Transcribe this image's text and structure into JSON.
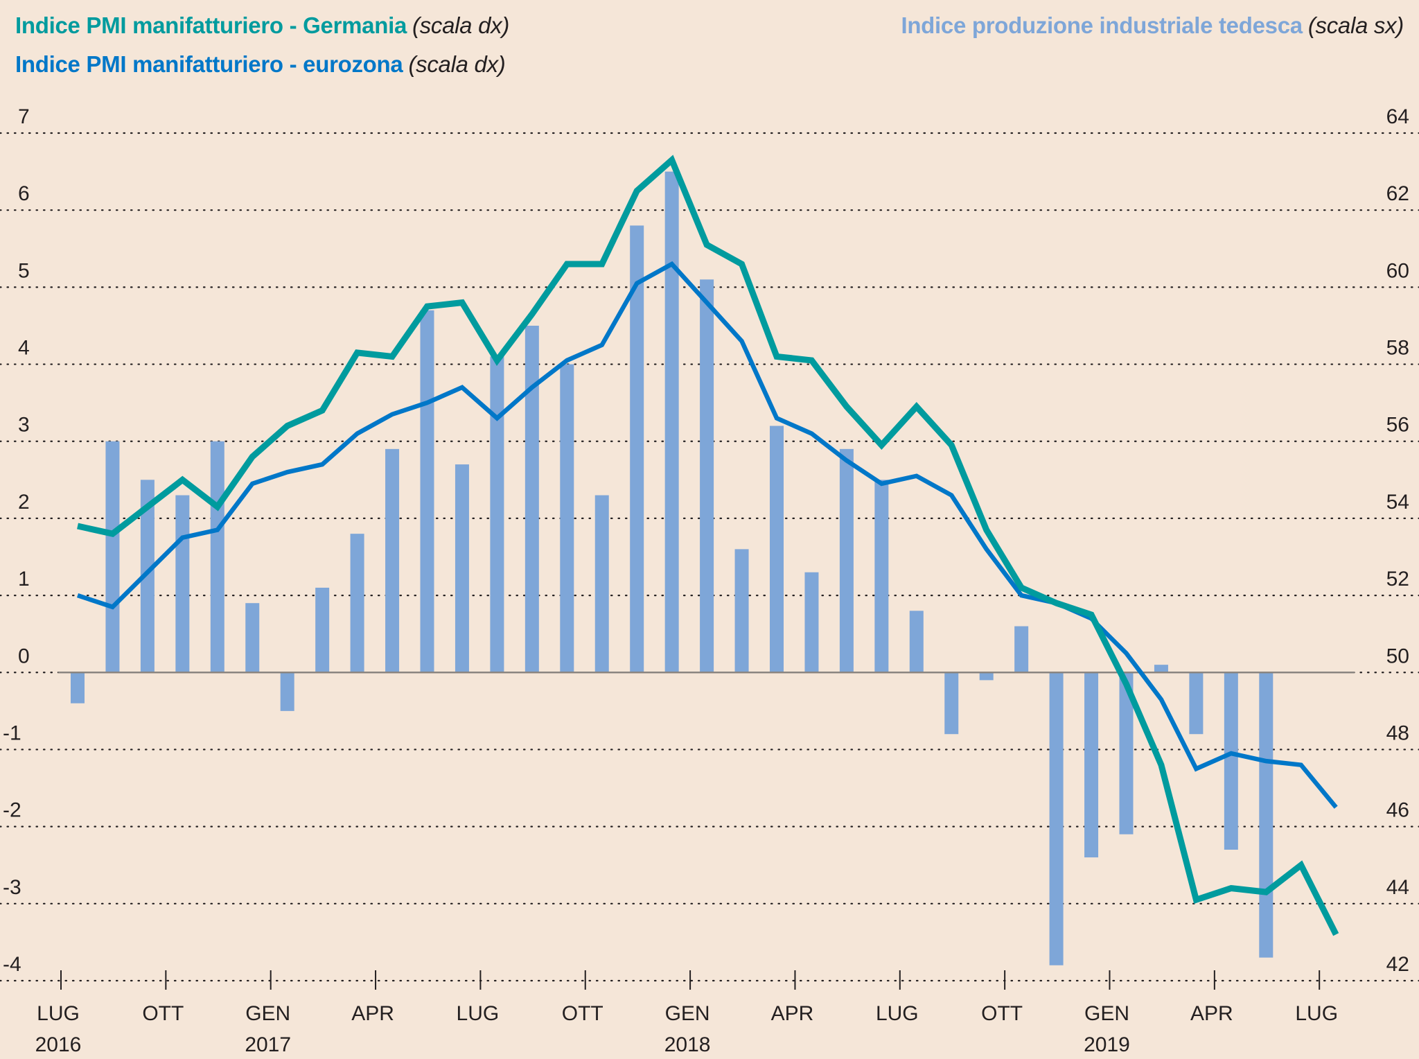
{
  "legend": {
    "germany": {
      "name": "Indice PMI manifatturiero - Germania",
      "scale": "(scala dx)",
      "color": "#009b9e"
    },
    "eurozone": {
      "name": "Indice PMI manifatturiero - eurozona",
      "scale": "(scala dx)",
      "color": "#0077c8"
    },
    "industrial": {
      "name": "Indice produzione industriale tedesca",
      "scale": "(scala sx)",
      "color": "#7ea6d8"
    }
  },
  "chart_data": {
    "type": "bar+line",
    "title": "",
    "x": [
      "2016-07",
      "2016-08",
      "2016-09",
      "2016-10",
      "2016-11",
      "2016-12",
      "2017-01",
      "2017-02",
      "2017-03",
      "2017-04",
      "2017-05",
      "2017-06",
      "2017-07",
      "2017-08",
      "2017-09",
      "2017-10",
      "2017-11",
      "2017-12",
      "2018-01",
      "2018-02",
      "2018-03",
      "2018-04",
      "2018-05",
      "2018-06",
      "2018-07",
      "2018-08",
      "2018-09",
      "2018-10",
      "2018-11",
      "2018-12",
      "2019-01",
      "2019-02",
      "2019-03",
      "2019-04",
      "2019-05",
      "2019-06",
      "2019-07"
    ],
    "x_ticks": [
      {
        "month": "LUG",
        "year": "2016",
        "index": 0
      },
      {
        "month": "OTT",
        "year": "",
        "index": 3
      },
      {
        "month": "GEN",
        "year": "2017",
        "index": 6
      },
      {
        "month": "APR",
        "year": "",
        "index": 9
      },
      {
        "month": "LUG",
        "year": "",
        "index": 12
      },
      {
        "month": "OTT",
        "year": "",
        "index": 15
      },
      {
        "month": "GEN",
        "year": "2018",
        "index": 18
      },
      {
        "month": "APR",
        "year": "",
        "index": 21
      },
      {
        "month": "LUG",
        "year": "",
        "index": 24
      },
      {
        "month": "OTT",
        "year": "",
        "index": 27
      },
      {
        "month": "GEN",
        "year": "2019",
        "index": 30
      },
      {
        "month": "APR",
        "year": "",
        "index": 33
      },
      {
        "month": "LUG",
        "year": "",
        "index": 36
      }
    ],
    "left_axis": {
      "label": "scala sx",
      "ylim": [
        -4,
        7
      ],
      "ticks": [
        "7",
        "6",
        "5",
        "4",
        "3",
        "2",
        "1",
        "0",
        "-1",
        "-2",
        "-3",
        "-4"
      ]
    },
    "right_axis": {
      "label": "scala dx",
      "ylim": [
        42,
        64
      ],
      "ticks": [
        "64",
        "62",
        "60",
        "58",
        "56",
        "54",
        "52",
        "50",
        "48",
        "46",
        "44",
        "42"
      ]
    },
    "grid": true,
    "series": [
      {
        "name": "Indice produzione industriale tedesca",
        "type": "bar",
        "axis": "left",
        "values": [
          -0.4,
          3.0,
          2.5,
          2.3,
          3.0,
          0.9,
          -0.5,
          1.1,
          1.8,
          2.9,
          4.7,
          2.7,
          4.1,
          4.5,
          4.0,
          2.3,
          5.8,
          6.5,
          5.1,
          1.6,
          3.2,
          1.3,
          2.9,
          2.5,
          0.8,
          -0.8,
          -0.1,
          0.6,
          -3.8,
          -2.4,
          -2.1,
          0.1,
          -0.8,
          -2.3,
          -3.7,
          null,
          null
        ]
      },
      {
        "name": "Indice PMI manifatturiero - Germania",
        "type": "line",
        "axis": "right",
        "values": [
          53.8,
          53.6,
          54.3,
          55.0,
          54.3,
          55.6,
          56.4,
          56.8,
          58.3,
          58.2,
          59.5,
          59.6,
          58.1,
          59.3,
          60.6,
          60.6,
          62.5,
          63.3,
          61.1,
          60.6,
          58.2,
          58.1,
          56.9,
          55.9,
          56.9,
          55.9,
          53.7,
          52.2,
          51.8,
          51.5,
          49.7,
          47.6,
          44.1,
          44.4,
          44.3,
          45.0,
          43.2
        ]
      },
      {
        "name": "Indice PMI manifatturiero - eurozona",
        "type": "line",
        "axis": "right",
        "values": [
          52.0,
          51.7,
          52.6,
          53.5,
          53.7,
          54.9,
          55.2,
          55.4,
          56.2,
          56.7,
          57.0,
          57.4,
          56.6,
          57.4,
          58.1,
          58.5,
          60.1,
          60.6,
          59.6,
          58.6,
          56.6,
          56.2,
          55.5,
          54.9,
          55.1,
          54.6,
          53.2,
          52.0,
          51.8,
          51.4,
          50.5,
          49.3,
          47.5,
          47.9,
          47.7,
          47.6,
          46.5
        ]
      }
    ]
  }
}
